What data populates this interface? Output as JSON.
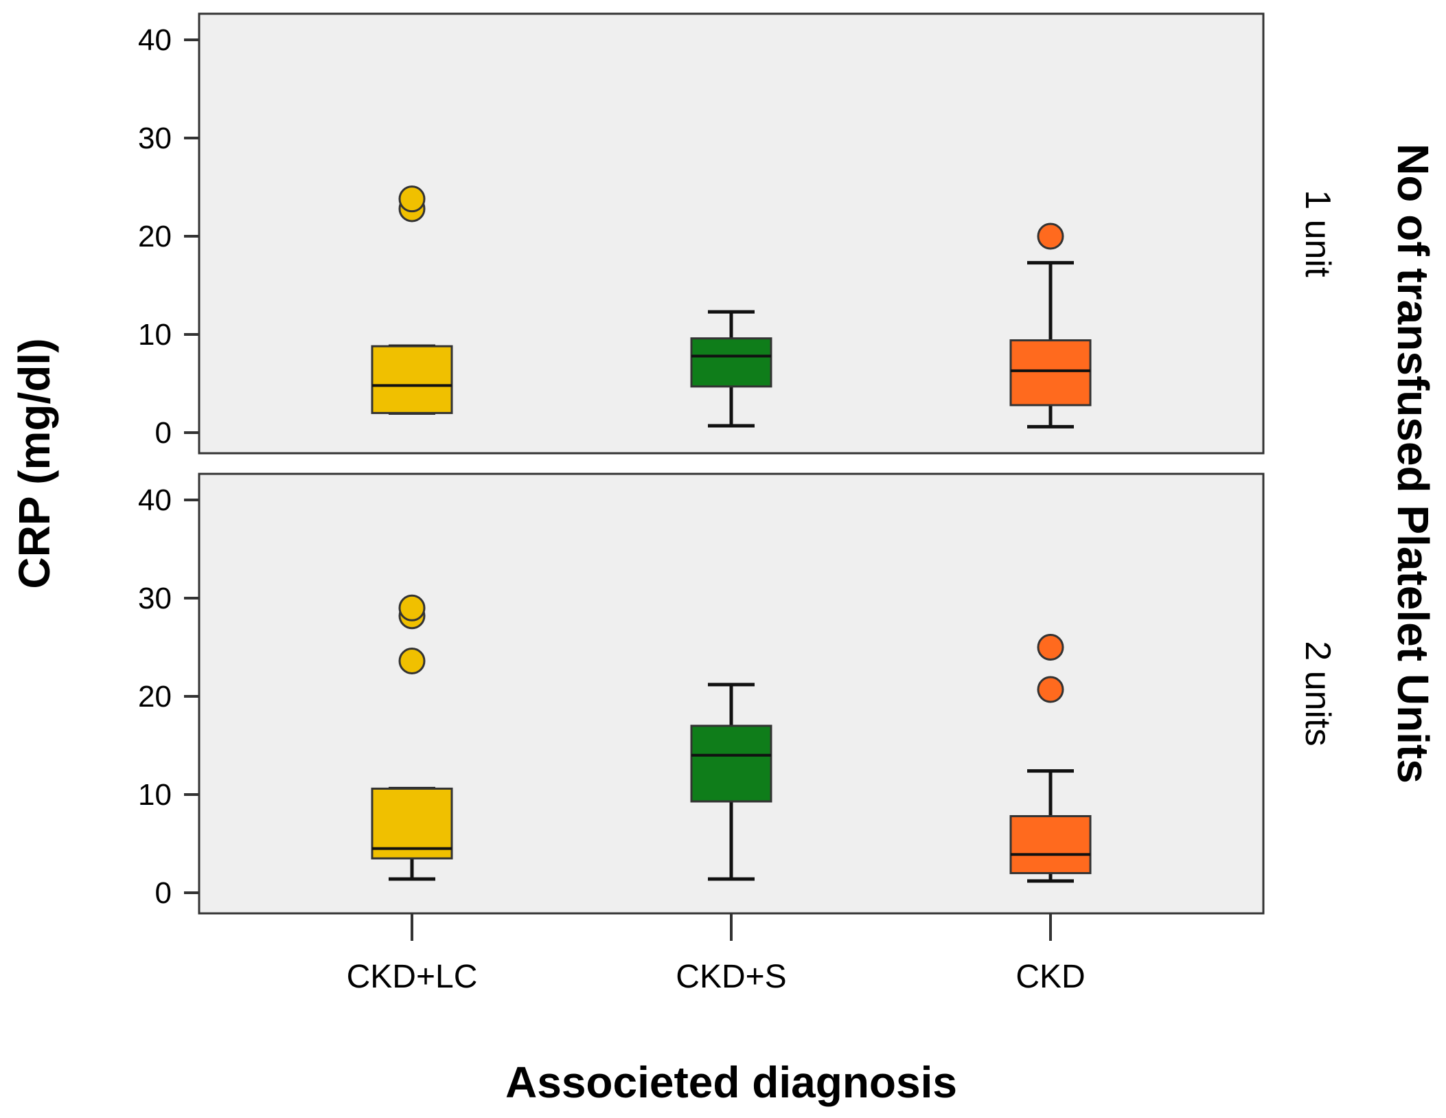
{
  "chart_data": {
    "type": "boxplot",
    "ylabel": "CRP (mg/dl)",
    "xlabel": "Associeted diagnosis",
    "facet_title": "No of transfused Platelet Units",
    "categories": [
      "CKD+LC",
      "CKD+S",
      "CKD"
    ],
    "colors": {
      "CKD+LC": "#F0C000",
      "CKD+S": "#0F7D1A",
      "CKD": "#FF6A1E",
      "panel_bg": "#EFEFEF"
    },
    "ylim": [
      0,
      40
    ],
    "yticks": [
      0,
      10,
      20,
      30,
      40
    ],
    "panels": [
      {
        "label": "1 unit",
        "boxes": [
          {
            "category": "CKD+LC",
            "whisker_low": 2.0,
            "q1": 2.0,
            "median": 4.8,
            "q3": 8.8,
            "whisker_high": 8.8,
            "outliers": [
              22.8,
              23.8
            ]
          },
          {
            "category": "CKD+S",
            "whisker_low": 0.7,
            "q1": 4.7,
            "median": 7.8,
            "q3": 9.6,
            "whisker_high": 12.3,
            "outliers": []
          },
          {
            "category": "CKD",
            "whisker_low": 0.6,
            "q1": 2.8,
            "median": 6.3,
            "q3": 9.4,
            "whisker_high": 17.3,
            "outliers": [
              20.0
            ]
          }
        ]
      },
      {
        "label": "2 units",
        "boxes": [
          {
            "category": "CKD+LC",
            "whisker_low": 1.4,
            "q1": 3.5,
            "median": 4.5,
            "q3": 10.6,
            "whisker_high": 10.6,
            "outliers": [
              23.6,
              28.2,
              29.0
            ]
          },
          {
            "category": "CKD+S",
            "whisker_low": 1.4,
            "q1": 9.3,
            "median": 14.0,
            "q3": 17.0,
            "whisker_high": 21.2,
            "outliers": []
          },
          {
            "category": "CKD",
            "whisker_low": 1.2,
            "q1": 2.0,
            "median": 3.9,
            "q3": 7.8,
            "whisker_high": 12.4,
            "outliers": [
              20.7,
              25.0
            ]
          }
        ]
      }
    ]
  }
}
